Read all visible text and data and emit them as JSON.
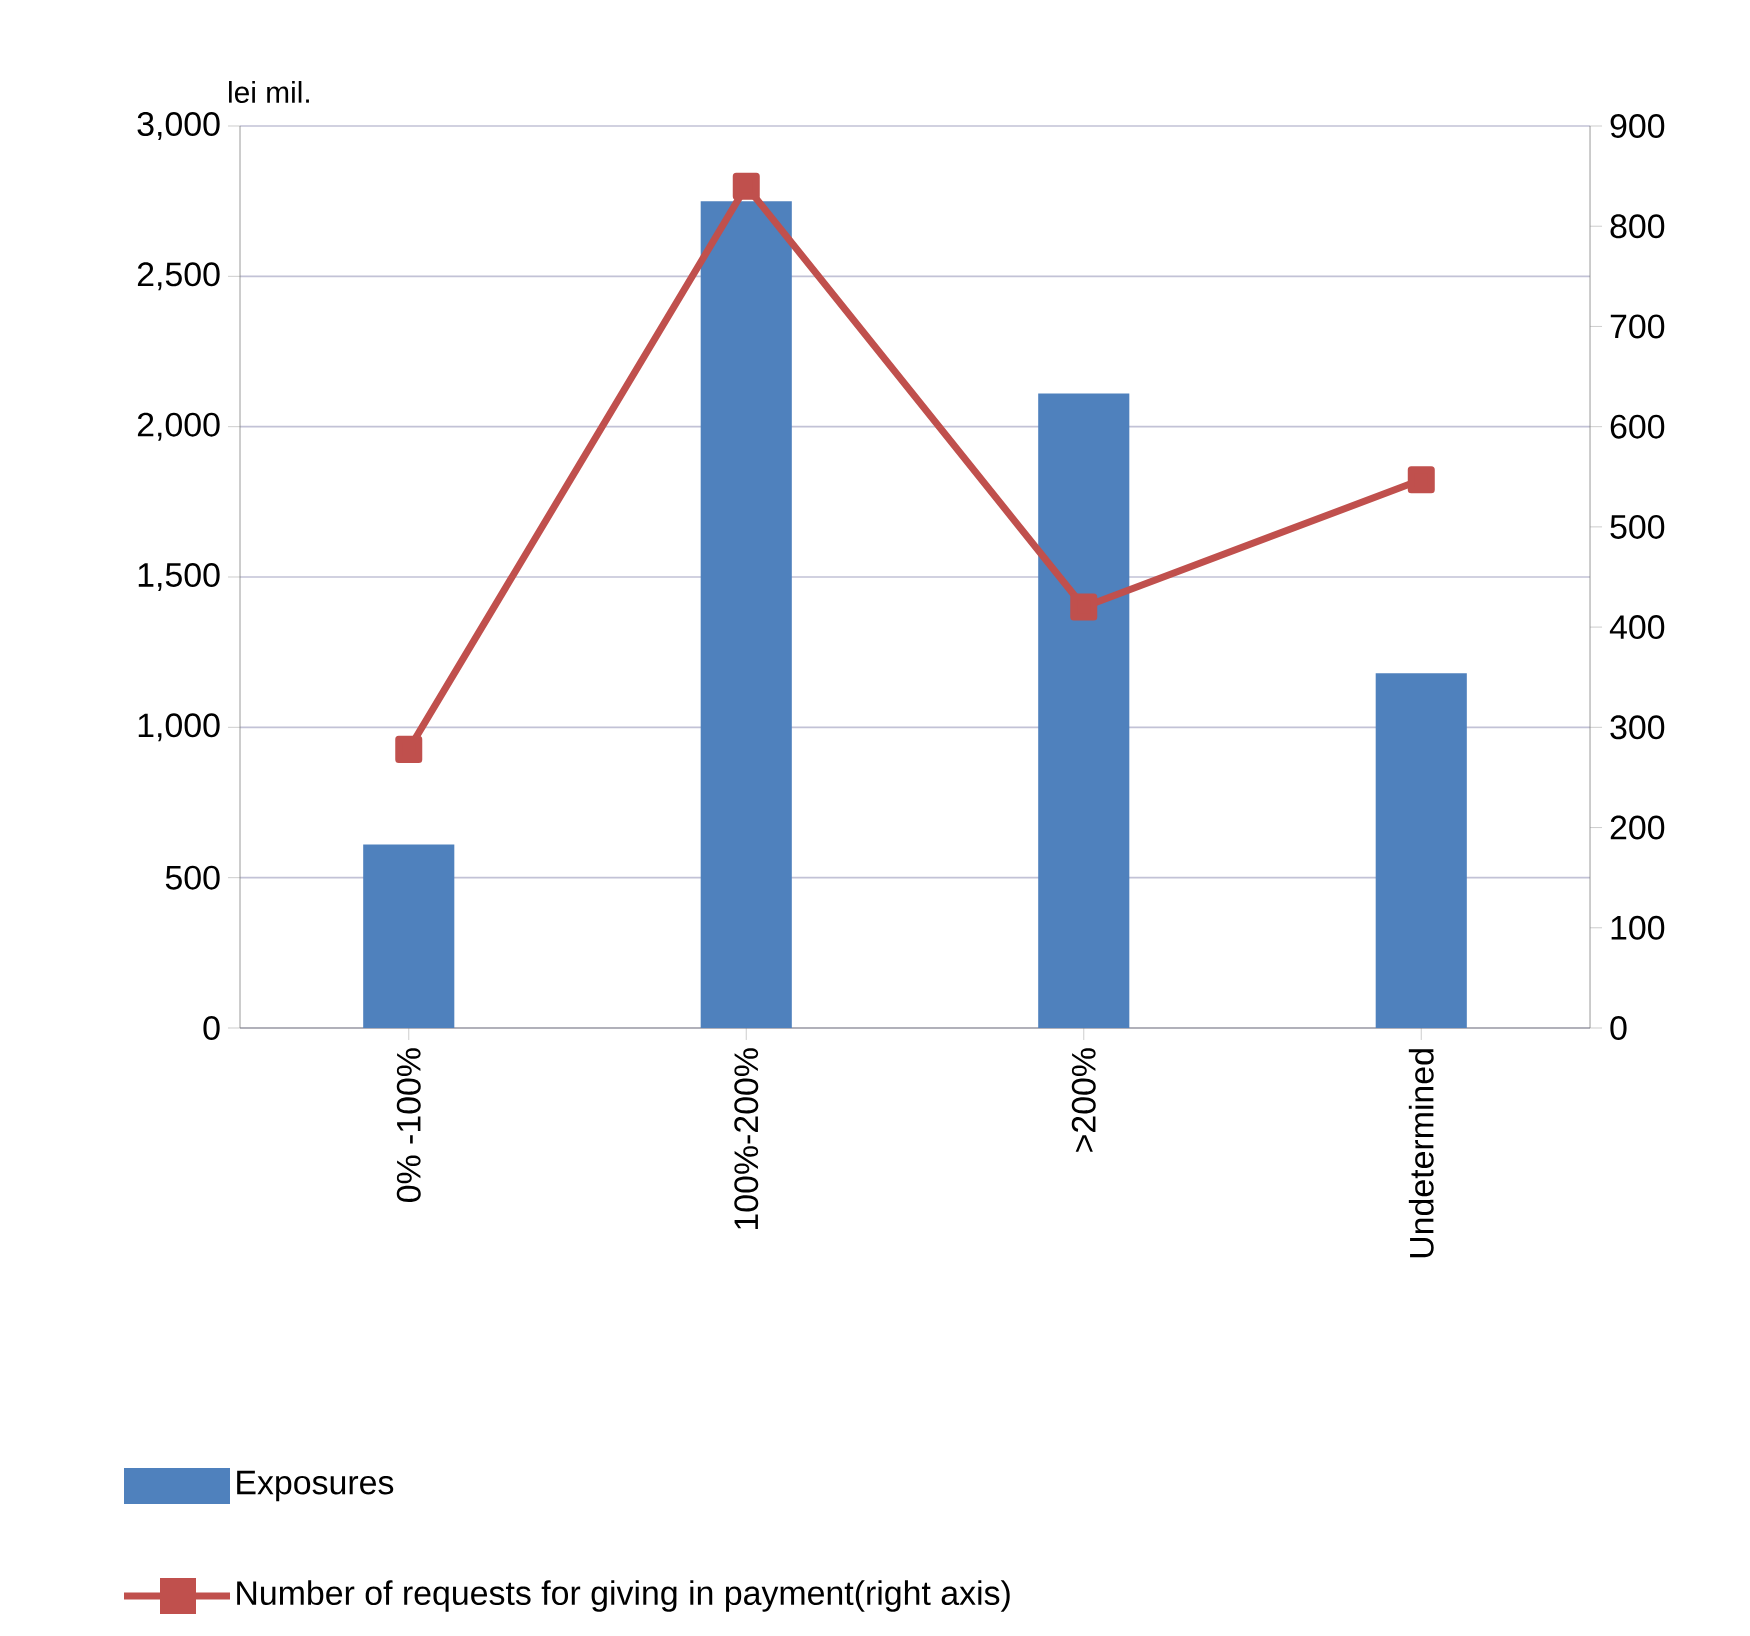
{
  "chart_data": {
    "type": "bar",
    "ylabel": "lei mil.",
    "categories": [
      "0% -100%",
      "100%-200%",
      ">200%",
      "Undetermined"
    ],
    "series": [
      {
        "name": "Exposures",
        "color": "#4f81bd",
        "values": [
          610,
          2750,
          2110,
          1180
        ]
      },
      {
        "name": "Number of requests for giving in payment(right axis)",
        "type": "line",
        "axis": "y2",
        "color": "#c0504d",
        "marker": "square",
        "values": [
          278,
          840,
          420,
          547
        ]
      }
    ],
    "ylim": [
      0,
      3000
    ],
    "yticks": [
      {
        "value": 0,
        "label": "0"
      },
      {
        "value": 500,
        "label": "500"
      },
      {
        "value": 1000,
        "label": "1,000"
      },
      {
        "value": 1500,
        "label": "1,500"
      },
      {
        "value": 2000,
        "label": "2,000"
      },
      {
        "value": 2500,
        "label": "2,500"
      },
      {
        "value": 3000,
        "label": "3,000"
      }
    ],
    "y2lim": [
      0,
      900
    ],
    "y2ticks": [
      0,
      100,
      200,
      300,
      400,
      500,
      600,
      700,
      800,
      900
    ],
    "grid": "y",
    "legend": "bottom"
  }
}
